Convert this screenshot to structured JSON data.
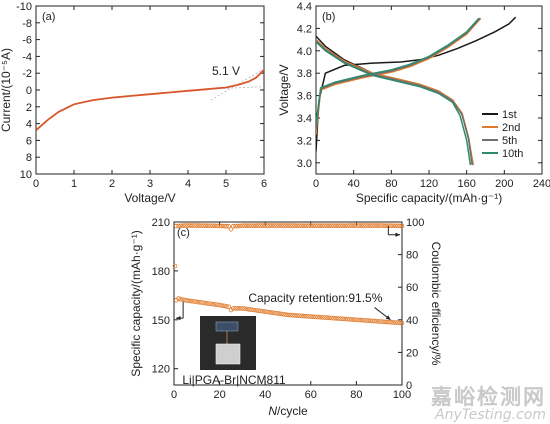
{
  "figure": {
    "source_watermark_cn": "嘉峪检测网",
    "source_watermark_en": "AnyTesting.com"
  },
  "chart_data": [
    {
      "panel": "(a)",
      "type": "line",
      "xlabel": "Voltage/V",
      "ylabel": "Current/(10⁻⁵A)",
      "xlim": [
        0,
        6
      ],
      "ylim": [
        10,
        -10
      ],
      "y_axis_inverted": true,
      "xticks": [
        0,
        1,
        2,
        3,
        4,
        5,
        6
      ],
      "yticks": [
        -10,
        -8,
        -6,
        -4,
        -2,
        0,
        2,
        4,
        6,
        8,
        10
      ],
      "annotation": "5.1 V",
      "series": [
        {
          "color": "#d9562a",
          "x": [
            0,
            0.3,
            0.6,
            1.0,
            1.5,
            2.0,
            2.5,
            3.0,
            3.5,
            4.0,
            4.5,
            5.0,
            5.3,
            5.6,
            5.8,
            6.0
          ],
          "y": [
            4.8,
            3.6,
            2.6,
            1.7,
            1.2,
            0.9,
            0.7,
            0.5,
            0.3,
            0.1,
            -0.1,
            -0.3,
            -0.6,
            -1.0,
            -1.5,
            -2.4
          ]
        }
      ],
      "tangent_lines": [
        {
          "x": [
            4.5,
            6.0
          ],
          "y": [
            -0.1,
            -0.4
          ]
        },
        {
          "x": [
            4.6,
            6.0
          ],
          "y": [
            1.2,
            -2.5
          ]
        }
      ]
    },
    {
      "panel": "(b)",
      "type": "line",
      "xlabel": "Specific capacity/(mAh·g⁻¹)",
      "ylabel": "Voltage/V",
      "xlim": [
        0,
        240
      ],
      "ylim": [
        2.9,
        4.4
      ],
      "xticks": [
        0,
        40,
        80,
        120,
        160,
        200,
        240
      ],
      "yticks": [
        3.0,
        3.2,
        3.4,
        3.6,
        3.8,
        4.0,
        4.2,
        4.4
      ],
      "legend_position": "bottom-right",
      "series": [
        {
          "name": "1st",
          "color": "#1a1a1a",
          "charge": {
            "x": [
              0,
              3,
              10,
              30,
              60,
              90,
              110,
              130,
              150,
              170,
              190,
              205,
              212
            ],
            "y": [
              3.1,
              3.55,
              3.8,
              3.87,
              3.89,
              3.9,
              3.92,
              3.96,
              4.02,
              4.09,
              4.17,
              4.24,
              4.3
            ]
          },
          "discharge": {
            "x": [
              0,
              10,
              30,
              60,
              90,
              110,
              130,
              145,
              155,
              162,
              166
            ],
            "y": [
              4.13,
              4.04,
              3.92,
              3.8,
              3.74,
              3.7,
              3.64,
              3.56,
              3.44,
              3.22,
              2.98
            ]
          }
        },
        {
          "name": "2nd",
          "color": "#e07a2a",
          "charge": {
            "x": [
              0,
              5,
              20,
              50,
              80,
              100,
              120,
              140,
              160,
              175
            ],
            "y": [
              3.25,
              3.65,
              3.7,
              3.76,
              3.81,
              3.86,
              3.93,
              4.03,
              4.15,
              4.29
            ]
          },
          "discharge": {
            "x": [
              0,
              10,
              30,
              60,
              90,
              110,
              130,
              145,
              155,
              162,
              167
            ],
            "y": [
              4.1,
              4.02,
              3.91,
              3.8,
              3.74,
              3.7,
              3.64,
              3.56,
              3.44,
              3.22,
              2.98
            ]
          }
        },
        {
          "name": "5th",
          "color": "#6f6f6f",
          "charge": {
            "x": [
              0,
              5,
              20,
              50,
              80,
              100,
              120,
              140,
              160,
              174
            ],
            "y": [
              3.3,
              3.66,
              3.71,
              3.77,
              3.82,
              3.87,
              3.94,
              4.04,
              4.16,
              4.29
            ]
          },
          "discharge": {
            "x": [
              0,
              10,
              30,
              60,
              90,
              110,
              130,
              145,
              155,
              162,
              166
            ],
            "y": [
              4.09,
              4.01,
              3.9,
              3.79,
              3.73,
              3.69,
              3.63,
              3.55,
              3.43,
              3.21,
              2.98
            ]
          }
        },
        {
          "name": "10th",
          "color": "#2e8b6e",
          "charge": {
            "x": [
              0,
              5,
              20,
              50,
              80,
              100,
              120,
              140,
              160,
              173
            ],
            "y": [
              3.35,
              3.67,
              3.72,
              3.78,
              3.83,
              3.88,
              3.95,
              4.05,
              4.17,
              4.29
            ]
          },
          "discharge": {
            "x": [
              0,
              10,
              30,
              60,
              90,
              110,
              130,
              145,
              153,
              160,
              164
            ],
            "y": [
              4.08,
              4.0,
              3.89,
              3.78,
              3.72,
              3.68,
              3.62,
              3.54,
              3.42,
              3.2,
              2.98
            ]
          }
        }
      ]
    },
    {
      "panel": "(c)",
      "type": "scatter",
      "xlabel": "N/cycle",
      "ylabel": "Specific capacity/(mAh·g⁻¹)",
      "y2label": "Coulombic efficiency/%",
      "xlim": [
        0,
        100
      ],
      "ylim": [
        110,
        210
      ],
      "y2lim": [
        0,
        100
      ],
      "xticks": [
        0,
        20,
        40,
        60,
        80,
        100
      ],
      "yticks": [
        120,
        150,
        180,
        210
      ],
      "y2ticks": [
        0,
        20,
        40,
        60,
        80,
        100
      ],
      "annotation": "Capacity retention:91.5%",
      "inset_label": "Li|PGA-Br|NCM811",
      "marker_color": "#e07a2a",
      "capacity": {
        "x": [
          1,
          2,
          5,
          10,
          15,
          20,
          24,
          25,
          26,
          30,
          40,
          50,
          60,
          70,
          80,
          90,
          100
        ],
        "y": [
          162,
          163,
          162,
          161,
          160,
          159,
          158,
          156,
          157,
          157,
          155,
          153,
          152,
          151,
          150,
          149,
          148
        ]
      },
      "capacity_first_point": {
        "x": 0,
        "y": 183
      },
      "efficiency": {
        "x": [
          1,
          5,
          10,
          20,
          24,
          25,
          26,
          30,
          40,
          50,
          60,
          70,
          80,
          90,
          100
        ],
        "y": [
          97.5,
          97.8,
          97.8,
          97.6,
          97.4,
          95.5,
          97.4,
          97.7,
          97.8,
          97.8,
          97.7,
          97.7,
          97.8,
          97.8,
          97.6
        ]
      }
    }
  ]
}
